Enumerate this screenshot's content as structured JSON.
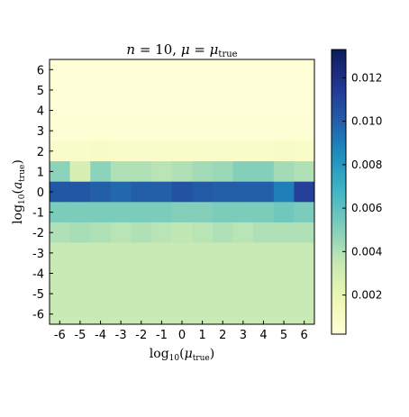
{
  "chart_data": {
    "type": "heatmap",
    "title": "n = 10,  μ = μ_true",
    "xlabel": "log10(μ_true)",
    "ylabel": "log10(a_true)",
    "x": [
      -6,
      -5,
      -4,
      -3,
      -2,
      -1,
      0,
      1,
      2,
      3,
      4,
      5,
      6
    ],
    "y": [
      -6,
      -5,
      -4,
      -3,
      -2,
      -1,
      0,
      1,
      2,
      3,
      4,
      5,
      6
    ],
    "x_tick_labels": [
      "-6",
      "-5",
      "-4",
      "-3",
      "-2",
      "-1",
      "0",
      "1",
      "2",
      "3",
      "4",
      "5",
      "6"
    ],
    "y_tick_labels": [
      "-6",
      "-5",
      "-4",
      "-3",
      "-2",
      "-1",
      "0",
      "1",
      "2",
      "3",
      "4",
      "5",
      "6"
    ],
    "colormap": "YlGnBu",
    "vmin": 0.0002,
    "vmax": 0.0133,
    "colorbar_ticks": [
      0.002,
      0.004,
      0.006,
      0.008,
      0.01,
      0.012
    ],
    "colorbar_tick_labels": [
      "0.002",
      "0.004",
      "0.006",
      "0.008",
      "0.010",
      "0.012"
    ],
    "values": [
      [
        0.0003,
        0.0003,
        0.0003,
        0.0003,
        0.0003,
        0.0003,
        0.0003,
        0.0003,
        0.0003,
        0.0003,
        0.0003,
        0.0003,
        0.0003
      ],
      [
        0.0003,
        0.0003,
        0.0003,
        0.0003,
        0.0003,
        0.0003,
        0.0003,
        0.0003,
        0.0003,
        0.0003,
        0.0003,
        0.0003,
        0.0003
      ],
      [
        0.0003,
        0.0003,
        0.0003,
        0.0003,
        0.0003,
        0.0003,
        0.0003,
        0.0003,
        0.0003,
        0.0003,
        0.0003,
        0.0003,
        0.0003
      ],
      [
        0.0004,
        0.0004,
        0.0004,
        0.0004,
        0.0004,
        0.0004,
        0.0004,
        0.0004,
        0.0004,
        0.0004,
        0.0004,
        0.0004,
        0.0004
      ],
      [
        0.0008,
        0.0009,
        0.001,
        0.0009,
        0.0008,
        0.0009,
        0.0009,
        0.0009,
        0.0008,
        0.0009,
        0.0009,
        0.001,
        0.0009
      ],
      [
        0.0048,
        0.0028,
        0.0048,
        0.004,
        0.004,
        0.0038,
        0.004,
        0.0043,
        0.0045,
        0.005,
        0.005,
        0.0043,
        0.004
      ],
      [
        0.0103,
        0.0103,
        0.01,
        0.0097,
        0.01,
        0.01,
        0.0105,
        0.0102,
        0.01,
        0.01,
        0.01,
        0.009,
        0.0112
      ],
      [
        0.0052,
        0.0052,
        0.0052,
        0.0052,
        0.0052,
        0.0052,
        0.005,
        0.005,
        0.0052,
        0.0052,
        0.0052,
        0.0055,
        0.0052
      ],
      [
        0.004,
        0.0042,
        0.004,
        0.0038,
        0.004,
        0.0038,
        0.0036,
        0.0038,
        0.004,
        0.0038,
        0.004,
        0.004,
        0.004
      ],
      [
        0.0034,
        0.0034,
        0.0034,
        0.0034,
        0.0034,
        0.0034,
        0.0034,
        0.0034,
        0.0034,
        0.0034,
        0.0034,
        0.0034,
        0.0034
      ],
      [
        0.0034,
        0.0034,
        0.0034,
        0.0034,
        0.0034,
        0.0034,
        0.0034,
        0.0034,
        0.0034,
        0.0034,
        0.0034,
        0.0034,
        0.0034
      ],
      [
        0.0034,
        0.0034,
        0.0034,
        0.0034,
        0.0034,
        0.0034,
        0.0034,
        0.0034,
        0.0034,
        0.0034,
        0.0034,
        0.0034,
        0.0034
      ],
      [
        0.0034,
        0.0034,
        0.0034,
        0.0034,
        0.0034,
        0.0034,
        0.0034,
        0.0034,
        0.0034,
        0.0034,
        0.0034,
        0.0034,
        0.0034
      ]
    ]
  }
}
